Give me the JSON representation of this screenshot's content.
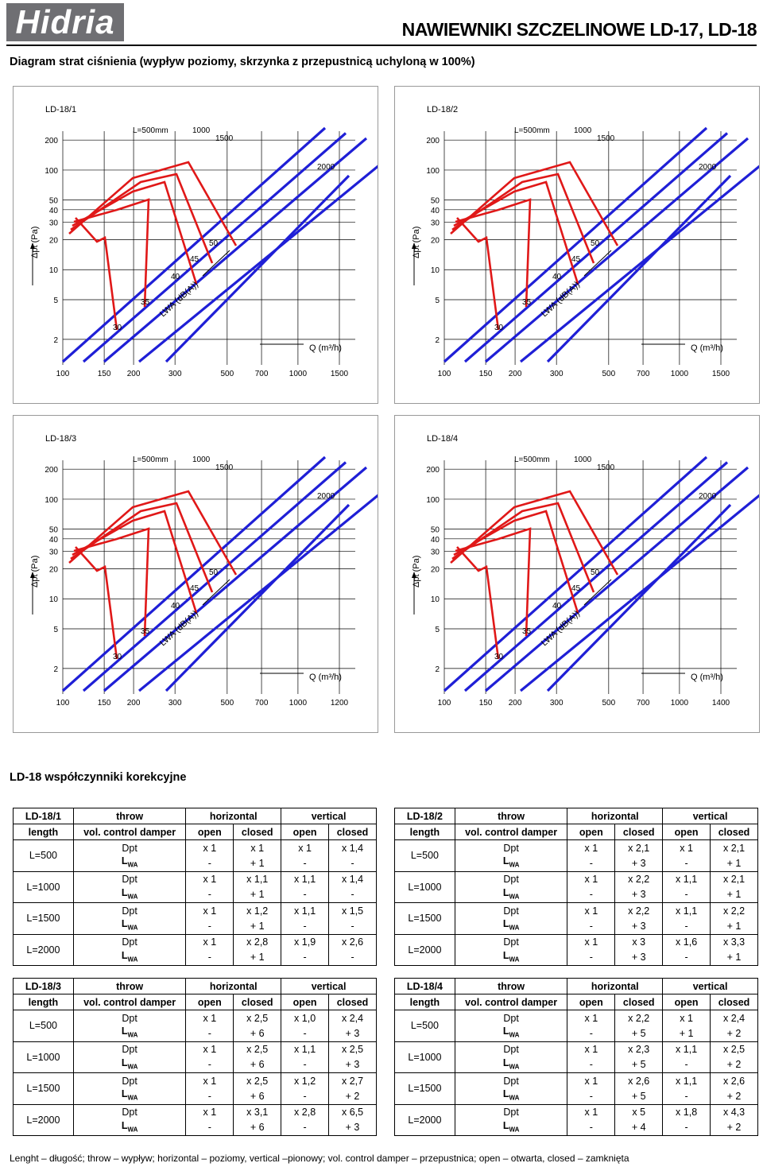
{
  "header": {
    "logo_text": "Hidria",
    "title": "NAWIEWNIKI SZCZELINOWE LD-17, LD-18",
    "subtitle": "Diagram strat ciśnienia (wypływ poziomy, skrzynka z przepustnicą uchyloną w  100%)"
  },
  "charts": [
    {
      "name": "LD-18/1",
      "y_axis_label": "Δpt (Pa)",
      "x_axis_label": "Q (m³/h)",
      "y_ticks": [
        "200",
        "100",
        "50",
        "40",
        "30",
        "20",
        "10",
        "5",
        "2"
      ],
      "x_ticks": [
        "100",
        "150",
        "200",
        "300",
        "500",
        "700",
        "1000",
        "1500"
      ],
      "length_labels": [
        "L=500mm",
        "1000",
        "1500",
        "2000"
      ],
      "noise_labels": [
        "30",
        "35",
        "40",
        "45",
        "50"
      ],
      "noise_axis_label": "LWA (dB(A))"
    },
    {
      "name": "LD-18/2",
      "y_axis_label": "Δpt (Pa)",
      "x_axis_label": "Q (m³/h)",
      "y_ticks": [
        "200",
        "100",
        "50",
        "40",
        "30",
        "20",
        "10",
        "5",
        "2"
      ],
      "x_ticks": [
        "100",
        "150",
        "200",
        "300",
        "500",
        "700",
        "1000",
        "1500"
      ],
      "length_labels": [
        "L=500mm",
        "1000",
        "1500",
        "2000"
      ],
      "noise_labels": [
        "30",
        "35",
        "40",
        "45",
        "50"
      ],
      "noise_axis_label": "LWA (dB(A))"
    },
    {
      "name": "LD-18/3",
      "y_axis_label": "Δpt (Pa)",
      "x_axis_label": "Q (m³/h)",
      "y_ticks": [
        "200",
        "100",
        "50",
        "40",
        "30",
        "20",
        "10",
        "5",
        "2"
      ],
      "x_ticks": [
        "100",
        "150",
        "200",
        "300",
        "500",
        "700",
        "1000",
        "1200"
      ],
      "length_labels": [
        "L=500mm",
        "1000",
        "1500",
        "2000"
      ],
      "noise_labels": [
        "30",
        "35",
        "40",
        "45",
        "50"
      ],
      "noise_axis_label": "LWA (dB(A))"
    },
    {
      "name": "LD-18/4",
      "y_axis_label": "Δpt (Pa)",
      "x_axis_label": "Q (m³/h)",
      "y_ticks": [
        "200",
        "100",
        "50",
        "40",
        "30",
        "20",
        "10",
        "5",
        "2"
      ],
      "x_ticks": [
        "100",
        "150",
        "200",
        "300",
        "500",
        "700",
        "1000",
        "1400"
      ],
      "length_labels": [
        "L=500mm",
        "1000",
        "1500",
        "2000"
      ],
      "noise_labels": [
        "30",
        "35",
        "40",
        "45",
        "50"
      ],
      "noise_axis_label": "LWA (dB(A))"
    }
  ],
  "correction_title": "LD-18 współczynniki korekcyjne",
  "table_headers": {
    "throw": "throw",
    "horizontal": "horizontal",
    "vertical": "vertical",
    "length": "length",
    "damper": "vol. control damper",
    "open": "open",
    "closed": "closed",
    "dpt": "Dpt",
    "lwa": "L",
    "lwa_sub": "WA"
  },
  "tables": [
    {
      "name": "LD-18/1",
      "rows": [
        {
          "length": "L=500",
          "dpt": [
            "x 1",
            "x 1",
            "x 1",
            "x 1,4"
          ],
          "lwa": [
            "-",
            "+ 1",
            "-",
            "-"
          ]
        },
        {
          "length": "L=1000",
          "dpt": [
            "x 1",
            "x 1,1",
            "x 1,1",
            "x 1,4"
          ],
          "lwa": [
            "-",
            "+ 1",
            "-",
            "-"
          ]
        },
        {
          "length": "L=1500",
          "dpt": [
            "x 1",
            "x 1,2",
            "x 1,1",
            "x 1,5"
          ],
          "lwa": [
            "-",
            "+ 1",
            "-",
            "-"
          ]
        },
        {
          "length": "L=2000",
          "dpt": [
            "x 1",
            "x 2,8",
            "x 1,9",
            "x 2,6"
          ],
          "lwa": [
            "-",
            "+ 1",
            "-",
            "-"
          ]
        }
      ]
    },
    {
      "name": "LD-18/2",
      "rows": [
        {
          "length": "L=500",
          "dpt": [
            "x 1",
            "x 2,1",
            "x 1",
            "x 2,1"
          ],
          "lwa": [
            "-",
            "+ 3",
            "-",
            "+ 1"
          ]
        },
        {
          "length": "L=1000",
          "dpt": [
            "x 1",
            "x 2,2",
            "x 1,1",
            "x 2,1"
          ],
          "lwa": [
            "-",
            "+ 3",
            "-",
            "+ 1"
          ]
        },
        {
          "length": "L=1500",
          "dpt": [
            "x 1",
            "x 2,2",
            "x 1,1",
            "x 2,2"
          ],
          "lwa": [
            "-",
            "+ 3",
            "-",
            "+ 1"
          ]
        },
        {
          "length": "L=2000",
          "dpt": [
            "x 1",
            "x 3",
            "x 1,6",
            "x 3,3"
          ],
          "lwa": [
            "-",
            "+ 3",
            "-",
            "+ 1"
          ]
        }
      ]
    },
    {
      "name": "LD-18/3",
      "rows": [
        {
          "length": "L=500",
          "dpt": [
            "x 1",
            "x 2,5",
            "x 1,0",
            "x 2,4"
          ],
          "lwa": [
            "-",
            "+ 6",
            "-",
            "+ 3"
          ]
        },
        {
          "length": "L=1000",
          "dpt": [
            "x 1",
            "x 2,5",
            "x 1,1",
            "x 2,5"
          ],
          "lwa": [
            "-",
            "+ 6",
            "-",
            "+ 3"
          ]
        },
        {
          "length": "L=1500",
          "dpt": [
            "x 1",
            "x 2,5",
            "x 1,2",
            "x 2,7"
          ],
          "lwa": [
            "-",
            "+ 6",
            "-",
            "+ 2"
          ]
        },
        {
          "length": "L=2000",
          "dpt": [
            "x 1",
            "x 3,1",
            "x 2,8",
            "x 6,5"
          ],
          "lwa": [
            "-",
            "+ 6",
            "-",
            "+ 3"
          ]
        }
      ]
    },
    {
      "name": "LD-18/4",
      "rows": [
        {
          "length": "L=500",
          "dpt": [
            "x 1",
            "x 2,2",
            "x 1",
            "x 2,4"
          ],
          "lwa": [
            "-",
            "+ 5",
            "+ 1",
            "+ 2"
          ]
        },
        {
          "length": "L=1000",
          "dpt": [
            "x 1",
            "x 2,3",
            "x 1,1",
            "x 2,5"
          ],
          "lwa": [
            "-",
            "+ 5",
            "-",
            "+ 2"
          ]
        },
        {
          "length": "L=1500",
          "dpt": [
            "x 1",
            "x 2,6",
            "x 1,1",
            "x 2,6"
          ],
          "lwa": [
            "-",
            "+ 5",
            "-",
            "+ 2"
          ]
        },
        {
          "length": "L=2000",
          "dpt": [
            "x 1",
            "x 5",
            "x 1,8",
            "x 4,3"
          ],
          "lwa": [
            "-",
            "+ 4",
            "-",
            "+ 2"
          ]
        }
      ]
    }
  ],
  "footnote": "Lenght – długość; throw – wypływ; horizontal – poziomy, vertical –pionowy; vol. control damper – przepustnica; open – otwarta, closed – zamknięta",
  "colors": {
    "blue": "#1f1fd6",
    "red": "#e01818",
    "logo_bg": "#6f6f73"
  }
}
